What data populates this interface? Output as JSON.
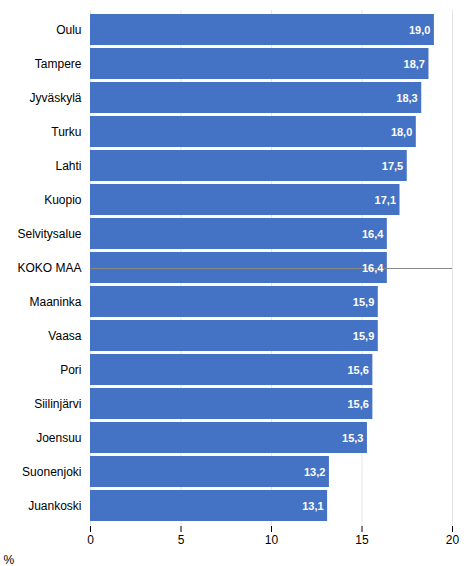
{
  "chart_data": {
    "type": "bar",
    "orientation": "horizontal",
    "categories": [
      "Oulu",
      "Tampere",
      "Jyväskylä",
      "Turku",
      "Lahti",
      "Kuopio",
      "Selvitysalue",
      "KOKO MAA",
      "Maaninka",
      "Vaasa",
      "Pori",
      "Siilinjärvi",
      "Joensuu",
      "Suonenjoki",
      "Juankoski"
    ],
    "values": [
      19.0,
      18.7,
      18.3,
      18.0,
      17.5,
      17.1,
      16.4,
      16.4,
      15.9,
      15.9,
      15.6,
      15.6,
      15.3,
      13.2,
      13.1
    ],
    "value_labels": [
      "19,0",
      "18,7",
      "18,3",
      "18,0",
      "17,5",
      "17,1",
      "16,4",
      "16,4",
      "15,9",
      "15,9",
      "15,6",
      "15,6",
      "15,3",
      "13,2",
      "13,1"
    ],
    "data_labels": true,
    "color": "#4472C4",
    "xlabel": "%",
    "xlim": [
      0,
      20
    ],
    "xticks": [
      0,
      5,
      10,
      15,
      20
    ],
    "grid": true
  }
}
